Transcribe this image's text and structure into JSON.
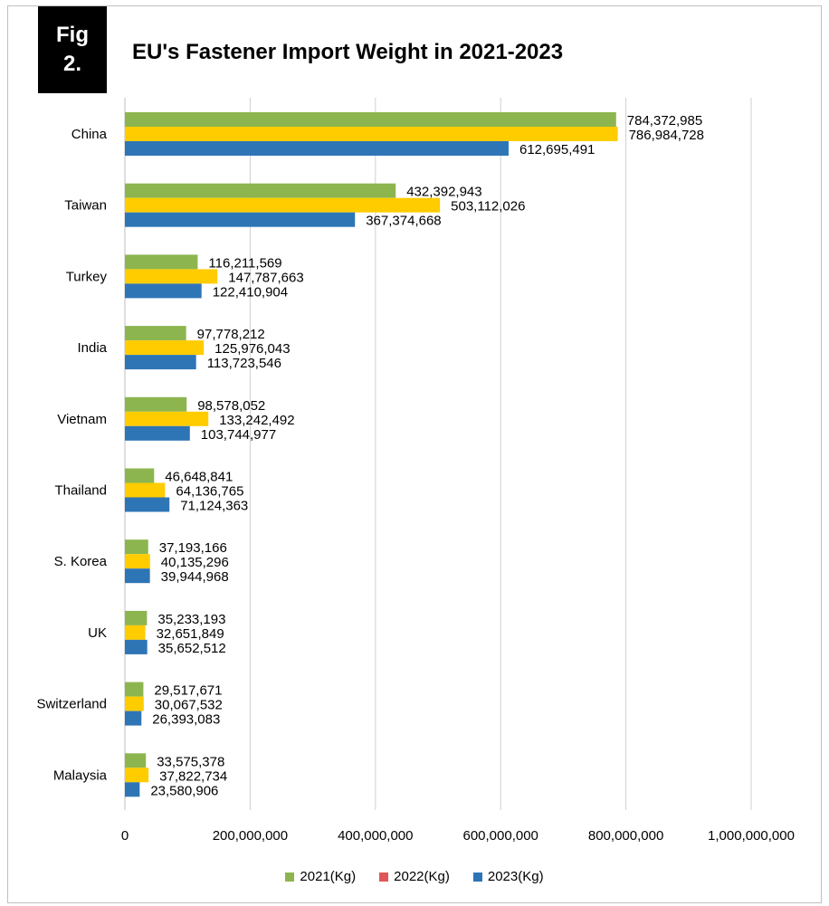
{
  "figure": {
    "badge_line1": "Fig",
    "badge_line2": "2."
  },
  "chart_data": {
    "type": "bar",
    "orientation": "horizontal",
    "title": "EU's Fastener Import Weight in 2021-2023",
    "categories": [
      "China",
      "Taiwan",
      "Turkey",
      "India",
      "Vietnam",
      "Thailand",
      "S. Korea",
      "UK",
      "Switzerland",
      "Malaysia"
    ],
    "series": [
      {
        "name": "2021(Kg)",
        "color": "#8db54f",
        "values": [
          784372985,
          432392943,
          116211569,
          97778212,
          98578052,
          46648841,
          37193166,
          35233193,
          29517671,
          33575378
        ]
      },
      {
        "name": "2022(Kg)",
        "color": "#ffcc00",
        "legend_color": "#e15759",
        "values": [
          786984728,
          503112026,
          147787663,
          125976043,
          133242492,
          64136765,
          40135296,
          32651849,
          30067532,
          37822734
        ]
      },
      {
        "name": "2023(Kg)",
        "color": "#2e75b6",
        "values": [
          612695491,
          367374668,
          122410904,
          113723546,
          103744977,
          71124363,
          39944968,
          35652512,
          26393083,
          23580906
        ]
      }
    ],
    "xlim": [
      0,
      1000000000
    ],
    "ticks": [
      "0",
      "200,000,000",
      "400,000,000",
      "600,000,000",
      "800,000,000",
      "1,000,000,000"
    ],
    "grid": true,
    "legend_position": "bottom"
  }
}
